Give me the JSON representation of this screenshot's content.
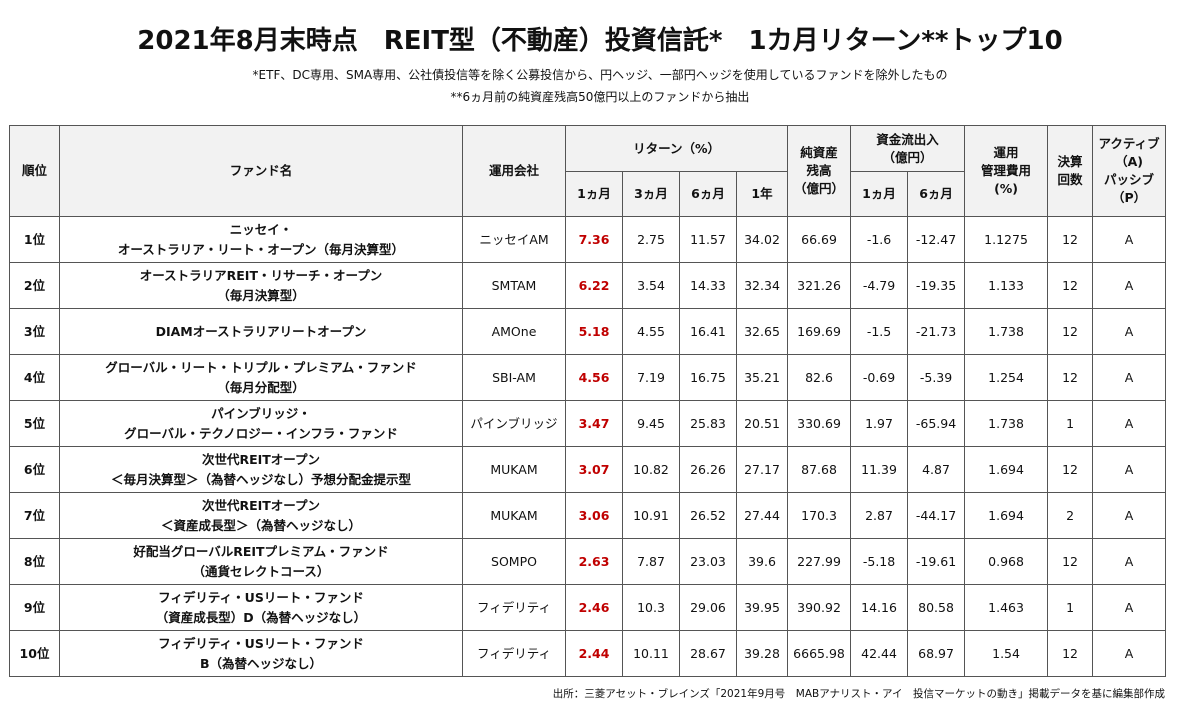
{
  "title": "2021年8月末時点　REIT型（不動産）投資信託*　1カ月リターン**トップ10",
  "notes": [
    "*ETF、DC専用、SMA専用、公社債投信等を除く公募投信から、円ヘッジ、一部円ヘッジを使用しているファンドを除外したもの",
    "**6ヵ月前の純資産残高50億円以上のファンドから抽出"
  ],
  "headers": {
    "rank": "順位",
    "fund": "ファンド名",
    "company": "運用会社",
    "return": "リターン（%）",
    "r1m": "1ヵ月",
    "r3m": "3ヵ月",
    "r6m": "6ヵ月",
    "r1y": "1年",
    "nav": [
      "純資産",
      "残高",
      "（億円）"
    ],
    "flow": [
      "資金流出入",
      "（億円）"
    ],
    "flow1m": "1ヵ月",
    "flow6m": "6ヵ月",
    "fee": [
      "運用",
      "管理費用",
      "(%)"
    ],
    "settle": [
      "決算",
      "回数"
    ],
    "ap": [
      "アクティブ",
      "（A)",
      "パッシブ",
      "（P）"
    ]
  },
  "rows": [
    {
      "rank": "1位",
      "fund": [
        "ニッセイ・",
        "オーストラリア・リート・オープン（毎月決算型）"
      ],
      "company": "ニッセイAM",
      "r1m": "7.36",
      "r3m": "2.75",
      "r6m": "11.57",
      "r1y": "34.02",
      "nav": "66.69",
      "flow1m": "-1.6",
      "flow6m": "-12.47",
      "fee": "1.1275",
      "settle": "12",
      "ap": "A"
    },
    {
      "rank": "2位",
      "fund": [
        "オーストラリアREIT・リサーチ・オープン",
        "（毎月決算型）"
      ],
      "company": "SMTAM",
      "r1m": "6.22",
      "r3m": "3.54",
      "r6m": "14.33",
      "r1y": "32.34",
      "nav": "321.26",
      "flow1m": "-4.79",
      "flow6m": "-19.35",
      "fee": "1.133",
      "settle": "12",
      "ap": "A"
    },
    {
      "rank": "3位",
      "fund": [
        "DIAMオーストラリアリートオープン"
      ],
      "company": "AMOne",
      "r1m": "5.18",
      "r3m": "4.55",
      "r6m": "16.41",
      "r1y": "32.65",
      "nav": "169.69",
      "flow1m": "-1.5",
      "flow6m": "-21.73",
      "fee": "1.738",
      "settle": "12",
      "ap": "A"
    },
    {
      "rank": "4位",
      "fund": [
        "グローバル・リート・トリプル・プレミアム・ファンド",
        "（毎月分配型）"
      ],
      "company": "SBI-AM",
      "r1m": "4.56",
      "r3m": "7.19",
      "r6m": "16.75",
      "r1y": "35.21",
      "nav": "82.6",
      "flow1m": "-0.69",
      "flow6m": "-5.39",
      "fee": "1.254",
      "settle": "12",
      "ap": "A"
    },
    {
      "rank": "5位",
      "fund": [
        "パインブリッジ・",
        "グローバル・テクノロジー・インフラ・ファンド"
      ],
      "company": "パインブリッジ",
      "r1m": "3.47",
      "r3m": "9.45",
      "r6m": "25.83",
      "r1y": "20.51",
      "nav": "330.69",
      "flow1m": "1.97",
      "flow6m": "-65.94",
      "fee": "1.738",
      "settle": "1",
      "ap": "A"
    },
    {
      "rank": "6位",
      "fund": [
        "次世代REITオープン",
        "＜毎月決算型＞（為替ヘッジなし）予想分配金提示型"
      ],
      "company": "MUKAM",
      "r1m": "3.07",
      "r3m": "10.82",
      "r6m": "26.26",
      "r1y": "27.17",
      "nav": "87.68",
      "flow1m": "11.39",
      "flow6m": "4.87",
      "fee": "1.694",
      "settle": "12",
      "ap": "A"
    },
    {
      "rank": "7位",
      "fund": [
        "次世代REITオープン",
        "＜資産成長型＞（為替ヘッジなし）"
      ],
      "company": "MUKAM",
      "r1m": "3.06",
      "r3m": "10.91",
      "r6m": "26.52",
      "r1y": "27.44",
      "nav": "170.3",
      "flow1m": "2.87",
      "flow6m": "-44.17",
      "fee": "1.694",
      "settle": "2",
      "ap": "A"
    },
    {
      "rank": "8位",
      "fund": [
        "好配当グローバルREITプレミアム・ファンド",
        "（通貨セレクトコース）"
      ],
      "company": "SOMPO",
      "r1m": "2.63",
      "r3m": "7.87",
      "r6m": "23.03",
      "r1y": "39.6",
      "nav": "227.99",
      "flow1m": "-5.18",
      "flow6m": "-19.61",
      "fee": "0.968",
      "settle": "12",
      "ap": "A"
    },
    {
      "rank": "9位",
      "fund": [
        "フィデリティ・USリート・ファンド",
        "（資産成長型）D（為替ヘッジなし）"
      ],
      "company": "フィデリティ",
      "r1m": "2.46",
      "r3m": "10.3",
      "r6m": "29.06",
      "r1y": "39.95",
      "nav": "390.92",
      "flow1m": "14.16",
      "flow6m": "80.58",
      "fee": "1.463",
      "settle": "1",
      "ap": "A"
    },
    {
      "rank": "10位",
      "fund": [
        "フィデリティ・USリート・ファンド",
        "B（為替ヘッジなし）"
      ],
      "company": "フィデリティ",
      "r1m": "2.44",
      "r3m": "10.11",
      "r6m": "28.67",
      "r1y": "39.28",
      "nav": "6665.98",
      "flow1m": "42.44",
      "flow6m": "68.97",
      "fee": "1.54",
      "settle": "12",
      "ap": "A"
    }
  ],
  "source": "出所：三菱アセット・ブレインズ「2021年9月号　MABアナリスト・アイ　投信マーケットの動き」掲載データを基に編集部作成",
  "colors": {
    "highlight": "#c00000",
    "header_bg": "#f2f2f2",
    "border": "#555555"
  }
}
